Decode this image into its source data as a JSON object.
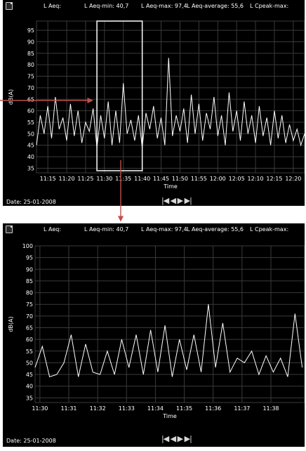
{
  "header": {
    "l_aeq": "L Aeq:",
    "l_aeq_min": "L Aeq-min: 40,7",
    "l_aeq_max": "L Aeq-max: 97,4",
    "l_aeq_average": "L Aeq-average: 55,6",
    "l_cpeak_max": "L Cpeak-max:"
  },
  "date": "Date: 25-01-2008",
  "navigation": {
    "first_icon": "skip-to-start-icon",
    "prev_icon": "step-back-icon",
    "next_icon": "step-forward-icon",
    "last_icon": "skip-to-end-icon",
    "first_glyph": "|◀",
    "prev_glyph": "◀",
    "next_glyph": "▶",
    "last_glyph": "▶|"
  },
  "colors": {
    "panel_background": "#000000",
    "trace": "#ffffff",
    "grid": "#3a3a3a",
    "zoom_box": "#ffffff",
    "arrow": "#c0504d"
  },
  "chart_data": [
    {
      "type": "line",
      "title": "",
      "xlabel": "Time",
      "ylabel": "dB(A)",
      "x_tick_labels": [
        "11:15",
        "11:20",
        "11:25",
        "11:30",
        "11:35",
        "11:40",
        "11:45",
        "11:50",
        "11:55",
        "12:00",
        "12:05",
        "12:10",
        "12:15",
        "12:20"
      ],
      "x_range": [
        "11:12",
        "12:23"
      ],
      "y_tick_labels": [
        "35",
        "40",
        "45",
        "50",
        "55",
        "60",
        "65",
        "70",
        "75",
        "80",
        "85",
        "90",
        "95"
      ],
      "ylim": [
        33,
        99
      ],
      "grid": true,
      "highlight_window": [
        "11:28",
        "11:40"
      ],
      "series": [
        {
          "x": [
            "11:12",
            "11:13",
            "11:14",
            "11:15",
            "11:16",
            "11:17",
            "11:18",
            "11:19",
            "11:20",
            "11:21",
            "11:22",
            "11:23",
            "11:24",
            "11:25",
            "11:26",
            "11:27",
            "11:28",
            "11:29",
            "11:30",
            "11:31",
            "11:32",
            "11:33",
            "11:34",
            "11:35",
            "11:36",
            "11:37",
            "11:38",
            "11:39",
            "11:40",
            "11:41",
            "11:42",
            "11:43",
            "11:44",
            "11:45",
            "11:46",
            "11:47",
            "11:48",
            "11:49",
            "11:50",
            "11:51",
            "11:52",
            "11:53",
            "11:54",
            "11:55",
            "11:56",
            "11:57",
            "11:58",
            "11:59",
            "12:00",
            "12:01",
            "12:02",
            "12:03",
            "12:04",
            "12:05",
            "12:06",
            "12:07",
            "12:08",
            "12:09",
            "12:10",
            "12:11",
            "12:12",
            "12:13",
            "12:14",
            "12:15",
            "12:16",
            "12:17",
            "12:18",
            "12:19",
            "12:20",
            "12:21",
            "12:22",
            "12:23"
          ],
          "values": [
            45,
            58,
            50,
            62,
            48,
            66,
            52,
            57,
            47,
            63,
            49,
            60,
            46,
            55,
            51,
            61,
            44,
            58,
            48,
            64,
            45,
            60,
            46,
            72,
            50,
            56,
            47,
            58,
            44,
            59,
            52,
            62,
            48,
            57,
            45,
            83,
            49,
            58,
            51,
            61,
            46,
            67,
            50,
            63,
            47,
            59,
            52,
            66,
            49,
            58,
            45,
            68,
            51,
            60,
            47,
            64,
            50,
            58,
            46,
            62,
            49,
            57,
            45,
            60,
            48,
            58,
            46,
            54,
            47,
            52,
            45,
            50
          ]
        }
      ]
    },
    {
      "type": "line",
      "title": "",
      "xlabel": "Time",
      "ylabel": "dB(A)",
      "x_tick_labels": [
        "11:30",
        "11:31",
        "11:32",
        "11:33",
        "11:34",
        "11:35",
        "11:36",
        "11:37",
        "11:38"
      ],
      "x_range": [
        "11:29:50",
        "11:39:10"
      ],
      "y_tick_labels": [
        "35",
        "40",
        "45",
        "50",
        "55",
        "60",
        "65",
        "70",
        "75",
        "80",
        "85",
        "90",
        "95",
        "100"
      ],
      "ylim": [
        33,
        100
      ],
      "grid": true,
      "series": [
        {
          "x": [
            "11:29:50",
            "11:30:05",
            "11:30:20",
            "11:30:35",
            "11:30:50",
            "11:31:05",
            "11:31:20",
            "11:31:35",
            "11:31:50",
            "11:32:05",
            "11:32:20",
            "11:32:35",
            "11:32:50",
            "11:33:05",
            "11:33:20",
            "11:33:35",
            "11:33:50",
            "11:34:05",
            "11:34:20",
            "11:34:35",
            "11:34:50",
            "11:35:05",
            "11:35:20",
            "11:35:35",
            "11:35:50",
            "11:36:05",
            "11:36:20",
            "11:36:35",
            "11:36:50",
            "11:37:05",
            "11:37:20",
            "11:37:35",
            "11:37:50",
            "11:38:05",
            "11:38:20",
            "11:38:35",
            "11:38:50",
            "11:39:05"
          ],
          "values": [
            48,
            57,
            44,
            45,
            50,
            62,
            44,
            58,
            46,
            45,
            55,
            45,
            60,
            48,
            62,
            45,
            64,
            46,
            66,
            44,
            60,
            47,
            62,
            46,
            75,
            48,
            67,
            46,
            52,
            50,
            55,
            45,
            53,
            46,
            52,
            44,
            71,
            48
          ]
        }
      ]
    }
  ]
}
